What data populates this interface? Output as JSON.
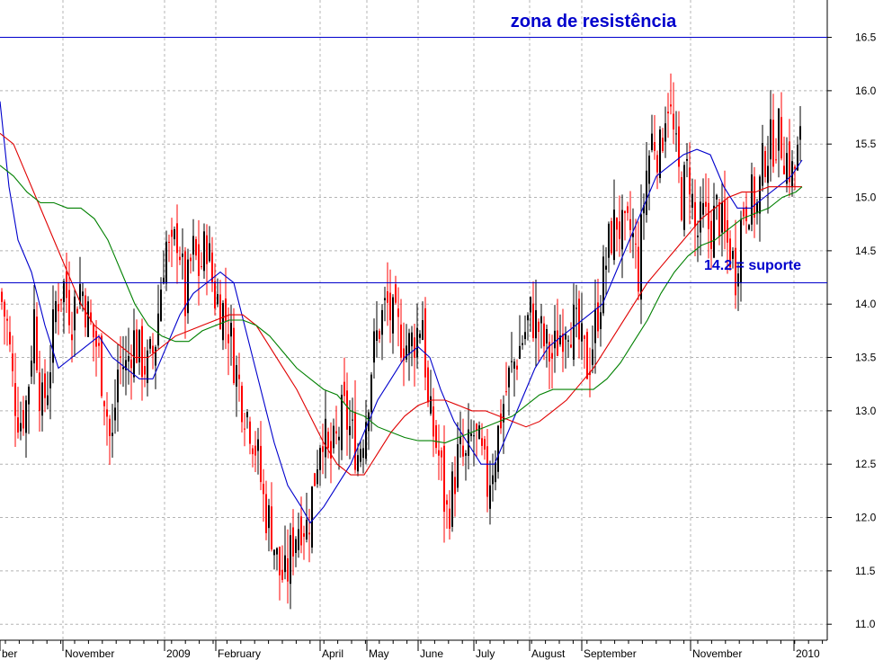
{
  "chart_data": {
    "type": "candlestick",
    "ylim": [
      10.85,
      16.85
    ],
    "y_ticks": [
      "11.0",
      "11.5",
      "12.0",
      "12.5",
      "13.0",
      "13.5",
      "14.0",
      "14.5",
      "15.0",
      "15.5",
      "16.0",
      "16.5"
    ],
    "x_labels": [
      "ber",
      "November",
      "2009",
      "February",
      "April",
      "May",
      "June",
      "July",
      "August",
      "September",
      "November",
      "2010"
    ],
    "grid": true,
    "colors": {
      "up": "#000000",
      "down": "#ff0000",
      "ma_short": "#0000cc",
      "ma_mid": "#e00000",
      "ma_long": "#008000",
      "hline": "#0000cc",
      "annotation": "#0000cc"
    },
    "resistance": {
      "value": 16.5,
      "label": "zona de resistência"
    },
    "support": {
      "value": 14.2,
      "label": "14.2 = suporte"
    },
    "close_path": [
      [
        0,
        14.1
      ],
      [
        8,
        13.8
      ],
      [
        15,
        13.2
      ],
      [
        22,
        12.9
      ],
      [
        30,
        13.1
      ],
      [
        38,
        13.9
      ],
      [
        46,
        13.0
      ],
      [
        54,
        13.3
      ],
      [
        62,
        14.0
      ],
      [
        70,
        14.2
      ],
      [
        80,
        13.9
      ],
      [
        90,
        14.2
      ],
      [
        100,
        13.8
      ],
      [
        108,
        13.6
      ],
      [
        116,
        13.2
      ],
      [
        124,
        12.6
      ],
      [
        132,
        13.5
      ],
      [
        140,
        13.4
      ],
      [
        148,
        13.7
      ],
      [
        156,
        13.5
      ],
      [
        164,
        13.4
      ],
      [
        172,
        13.6
      ],
      [
        178,
        14.1
      ],
      [
        184,
        14.6
      ],
      [
        190,
        14.4
      ],
      [
        198,
        14.7
      ],
      [
        206,
        14.0
      ],
      [
        214,
        14.5
      ],
      [
        222,
        14.3
      ],
      [
        230,
        14.6
      ],
      [
        238,
        14.1
      ],
      [
        246,
        14.0
      ],
      [
        254,
        13.8
      ],
      [
        262,
        13.4
      ],
      [
        270,
        13.1
      ],
      [
        278,
        12.9
      ],
      [
        286,
        12.6
      ],
      [
        294,
        12.1
      ],
      [
        302,
        11.9
      ],
      [
        310,
        11.5
      ],
      [
        318,
        11.4
      ],
      [
        326,
        11.8
      ],
      [
        334,
        12.0
      ],
      [
        342,
        11.9
      ],
      [
        350,
        12.4
      ],
      [
        358,
        12.9
      ],
      [
        366,
        12.5
      ],
      [
        374,
        12.7
      ],
      [
        382,
        13.0
      ],
      [
        390,
        12.8
      ],
      [
        398,
        12.6
      ],
      [
        406,
        12.9
      ],
      [
        414,
        13.5
      ],
      [
        422,
        13.8
      ],
      [
        430,
        14.0
      ],
      [
        438,
        13.8
      ],
      [
        446,
        13.7
      ],
      [
        454,
        13.6
      ],
      [
        462,
        13.7
      ],
      [
        470,
        13.9
      ],
      [
        476,
        13.0
      ],
      [
        482,
        12.8
      ],
      [
        490,
        12.5
      ],
      [
        496,
        12.0
      ],
      [
        502,
        12.2
      ],
      [
        510,
        12.6
      ],
      [
        518,
        12.5
      ],
      [
        526,
        12.8
      ],
      [
        534,
        12.6
      ],
      [
        542,
        12.3
      ],
      [
        550,
        12.6
      ],
      [
        558,
        13.0
      ],
      [
        566,
        13.3
      ],
      [
        574,
        13.5
      ],
      [
        582,
        13.7
      ],
      [
        590,
        13.9
      ],
      [
        598,
        13.8
      ],
      [
        606,
        13.6
      ],
      [
        614,
        13.5
      ],
      [
        622,
        13.7
      ],
      [
        630,
        13.9
      ],
      [
        638,
        13.8
      ],
      [
        646,
        13.6
      ],
      [
        654,
        13.4
      ],
      [
        662,
        13.8
      ],
      [
        670,
        14.2
      ],
      [
        678,
        14.6
      ],
      [
        686,
        14.8
      ],
      [
        694,
        14.6
      ],
      [
        702,
        14.7
      ],
      [
        710,
        14.3
      ],
      [
        718,
        15.2
      ],
      [
        726,
        15.6
      ],
      [
        734,
        15.4
      ],
      [
        742,
        16.0
      ],
      [
        750,
        15.5
      ],
      [
        758,
        15.0
      ],
      [
        766,
        15.3
      ],
      [
        774,
        14.6
      ],
      [
        782,
        14.8
      ],
      [
        790,
        14.7
      ],
      [
        798,
        14.9
      ],
      [
        806,
        14.6
      ],
      [
        812,
        14.5
      ],
      [
        818,
        14.3
      ],
      [
        826,
        14.9
      ],
      [
        834,
        15.0
      ],
      [
        842,
        14.9
      ],
      [
        850,
        15.4
      ],
      [
        858,
        15.5
      ],
      [
        866,
        15.6
      ],
      [
        874,
        15.4
      ],
      [
        882,
        15.2
      ],
      [
        890,
        15.5
      ]
    ],
    "moving_averages": [
      {
        "points": [
          [
            0,
            15.9
          ],
          [
            10,
            15.1
          ],
          [
            20,
            14.6
          ],
          [
            35,
            14.3
          ],
          [
            50,
            13.8
          ],
          [
            65,
            13.4
          ],
          [
            80,
            13.5
          ],
          [
            95,
            13.6
          ],
          [
            110,
            13.7
          ],
          [
            125,
            13.5
          ],
          [
            140,
            13.4
          ],
          [
            155,
            13.3
          ],
          [
            170,
            13.3
          ],
          [
            185,
            13.6
          ],
          [
            200,
            13.9
          ],
          [
            215,
            14.1
          ],
          [
            230,
            14.2
          ],
          [
            245,
            14.3
          ],
          [
            260,
            14.2
          ],
          [
            275,
            13.7
          ],
          [
            290,
            13.2
          ],
          [
            305,
            12.7
          ],
          [
            320,
            12.3
          ],
          [
            335,
            12.1
          ],
          [
            345,
            11.95
          ],
          [
            360,
            12.1
          ],
          [
            375,
            12.3
          ],
          [
            390,
            12.5
          ],
          [
            405,
            12.8
          ],
          [
            420,
            13.1
          ],
          [
            435,
            13.3
          ],
          [
            450,
            13.5
          ],
          [
            465,
            13.6
          ],
          [
            478,
            13.5
          ],
          [
            490,
            13.2
          ],
          [
            505,
            12.9
          ],
          [
            520,
            12.7
          ],
          [
            535,
            12.5
          ],
          [
            550,
            12.5
          ],
          [
            565,
            12.8
          ],
          [
            580,
            13.1
          ],
          [
            595,
            13.4
          ],
          [
            610,
            13.6
          ],
          [
            625,
            13.7
          ],
          [
            640,
            13.8
          ],
          [
            655,
            13.9
          ],
          [
            670,
            14.0
          ],
          [
            685,
            14.3
          ],
          [
            700,
            14.6
          ],
          [
            715,
            14.9
          ],
          [
            730,
            15.2
          ],
          [
            745,
            15.3
          ],
          [
            760,
            15.4
          ],
          [
            775,
            15.45
          ],
          [
            790,
            15.4
          ],
          [
            805,
            15.1
          ],
          [
            820,
            14.9
          ],
          [
            835,
            14.9
          ],
          [
            850,
            15.0
          ],
          [
            865,
            15.1
          ],
          [
            880,
            15.2
          ],
          [
            892,
            15.35
          ]
        ]
      },
      {
        "points": [
          [
            0,
            15.6
          ],
          [
            15,
            15.5
          ],
          [
            30,
            15.2
          ],
          [
            45,
            14.9
          ],
          [
            60,
            14.6
          ],
          [
            75,
            14.3
          ],
          [
            90,
            14.0
          ],
          [
            105,
            13.8
          ],
          [
            120,
            13.7
          ],
          [
            135,
            13.6
          ],
          [
            150,
            13.5
          ],
          [
            165,
            13.5
          ],
          [
            180,
            13.6
          ],
          [
            195,
            13.7
          ],
          [
            210,
            13.75
          ],
          [
            225,
            13.8
          ],
          [
            240,
            13.85
          ],
          [
            255,
            13.9
          ],
          [
            270,
            13.9
          ],
          [
            285,
            13.8
          ],
          [
            300,
            13.6
          ],
          [
            315,
            13.4
          ],
          [
            330,
            13.2
          ],
          [
            345,
            12.95
          ],
          [
            360,
            12.7
          ],
          [
            375,
            12.5
          ],
          [
            390,
            12.4
          ],
          [
            405,
            12.4
          ],
          [
            420,
            12.6
          ],
          [
            435,
            12.8
          ],
          [
            450,
            12.95
          ],
          [
            465,
            13.05
          ],
          [
            480,
            13.1
          ],
          [
            495,
            13.1
          ],
          [
            510,
            13.05
          ],
          [
            525,
            13.0
          ],
          [
            540,
            13.0
          ],
          [
            555,
            12.95
          ],
          [
            570,
            12.9
          ],
          [
            585,
            12.85
          ],
          [
            600,
            12.9
          ],
          [
            615,
            13.0
          ],
          [
            630,
            13.1
          ],
          [
            645,
            13.25
          ],
          [
            660,
            13.4
          ],
          [
            675,
            13.6
          ],
          [
            690,
            13.8
          ],
          [
            705,
            14.0
          ],
          [
            720,
            14.2
          ],
          [
            735,
            14.35
          ],
          [
            750,
            14.5
          ],
          [
            765,
            14.65
          ],
          [
            780,
            14.8
          ],
          [
            795,
            14.9
          ],
          [
            810,
            15.0
          ],
          [
            825,
            15.05
          ],
          [
            840,
            15.05
          ],
          [
            855,
            15.1
          ],
          [
            870,
            15.1
          ],
          [
            885,
            15.1
          ],
          [
            892,
            15.1
          ]
        ]
      },
      {
        "points": [
          [
            0,
            15.3
          ],
          [
            15,
            15.2
          ],
          [
            30,
            15.05
          ],
          [
            45,
            14.95
          ],
          [
            60,
            14.95
          ],
          [
            75,
            14.9
          ],
          [
            90,
            14.9
          ],
          [
            105,
            14.8
          ],
          [
            120,
            14.6
          ],
          [
            135,
            14.3
          ],
          [
            150,
            14.0
          ],
          [
            165,
            13.8
          ],
          [
            180,
            13.7
          ],
          [
            195,
            13.65
          ],
          [
            210,
            13.65
          ],
          [
            225,
            13.75
          ],
          [
            240,
            13.8
          ],
          [
            255,
            13.85
          ],
          [
            270,
            13.85
          ],
          [
            285,
            13.8
          ],
          [
            300,
            13.7
          ],
          [
            315,
            13.55
          ],
          [
            330,
            13.4
          ],
          [
            345,
            13.3
          ],
          [
            360,
            13.2
          ],
          [
            375,
            13.15
          ],
          [
            390,
            13.0
          ],
          [
            405,
            12.95
          ],
          [
            420,
            12.85
          ],
          [
            435,
            12.8
          ],
          [
            450,
            12.75
          ],
          [
            465,
            12.72
          ],
          [
            480,
            12.72
          ],
          [
            495,
            12.7
          ],
          [
            510,
            12.75
          ],
          [
            525,
            12.8
          ],
          [
            540,
            12.85
          ],
          [
            555,
            12.9
          ],
          [
            570,
            12.95
          ],
          [
            585,
            13.05
          ],
          [
            600,
            13.15
          ],
          [
            615,
            13.2
          ],
          [
            630,
            13.2
          ],
          [
            645,
            13.2
          ],
          [
            660,
            13.2
          ],
          [
            675,
            13.3
          ],
          [
            690,
            13.45
          ],
          [
            705,
            13.65
          ],
          [
            720,
            13.85
          ],
          [
            735,
            14.1
          ],
          [
            750,
            14.3
          ],
          [
            765,
            14.45
          ],
          [
            780,
            14.55
          ],
          [
            795,
            14.6
          ],
          [
            810,
            14.7
          ],
          [
            825,
            14.8
          ],
          [
            840,
            14.85
          ],
          [
            855,
            14.9
          ],
          [
            870,
            15.0
          ],
          [
            885,
            15.05
          ],
          [
            892,
            15.1
          ]
        ]
      }
    ]
  }
}
